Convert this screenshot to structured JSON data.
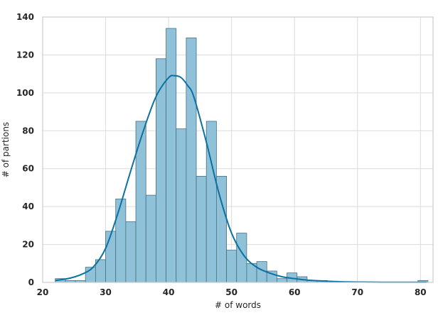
{
  "chart_data": {
    "type": "bar",
    "subtype": "histogram-with-kde",
    "xlabel": "# of words",
    "ylabel": "# of partions",
    "xlim": [
      20,
      82
    ],
    "ylim": [
      0,
      140
    ],
    "xticks": [
      20,
      30,
      40,
      50,
      60,
      70,
      80
    ],
    "yticks": [
      0,
      20,
      40,
      60,
      80,
      100,
      120,
      140
    ],
    "grid": true,
    "bin_width": 1.6,
    "bins": [
      {
        "x0": 22.0,
        "count": 2
      },
      {
        "x0": 23.6,
        "count": 1
      },
      {
        "x0": 25.2,
        "count": 1
      },
      {
        "x0": 26.8,
        "count": 8
      },
      {
        "x0": 28.4,
        "count": 12
      },
      {
        "x0": 30.0,
        "count": 27
      },
      {
        "x0": 31.6,
        "count": 44
      },
      {
        "x0": 33.2,
        "count": 32
      },
      {
        "x0": 34.8,
        "count": 85
      },
      {
        "x0": 36.4,
        "count": 46
      },
      {
        "x0": 38.0,
        "count": 118
      },
      {
        "x0": 39.6,
        "count": 134
      },
      {
        "x0": 41.2,
        "count": 81
      },
      {
        "x0": 42.8,
        "count": 129
      },
      {
        "x0": 44.4,
        "count": 56
      },
      {
        "x0": 46.0,
        "count": 85
      },
      {
        "x0": 47.6,
        "count": 56
      },
      {
        "x0": 49.2,
        "count": 17
      },
      {
        "x0": 50.8,
        "count": 26
      },
      {
        "x0": 52.4,
        "count": 10
      },
      {
        "x0": 54.0,
        "count": 11
      },
      {
        "x0": 55.6,
        "count": 6
      },
      {
        "x0": 57.2,
        "count": 2
      },
      {
        "x0": 58.8,
        "count": 5
      },
      {
        "x0": 60.4,
        "count": 3
      },
      {
        "x0": 62.0,
        "count": 1
      },
      {
        "x0": 63.6,
        "count": 1
      },
      {
        "x0": 65.2,
        "count": 0
      },
      {
        "x0": 66.8,
        "count": 0
      },
      {
        "x0": 68.4,
        "count": 0
      },
      {
        "x0": 70.0,
        "count": 0
      },
      {
        "x0": 71.6,
        "count": 0
      },
      {
        "x0": 73.2,
        "count": 0
      },
      {
        "x0": 74.8,
        "count": 0
      },
      {
        "x0": 76.4,
        "count": 0
      },
      {
        "x0": 78.0,
        "count": 0
      },
      {
        "x0": 79.6,
        "count": 1
      }
    ],
    "kde": {
      "x": [
        22,
        24,
        26,
        28,
        30,
        32,
        34,
        36,
        38,
        40,
        41,
        42,
        43,
        44,
        46,
        48,
        50,
        52,
        54,
        56,
        58,
        60,
        62,
        64,
        66,
        68,
        70,
        74,
        78,
        81
      ],
      "y": [
        1,
        2,
        4,
        8,
        18,
        37,
        59,
        80,
        98,
        108,
        109,
        108,
        104,
        98,
        74,
        47,
        26,
        14,
        8,
        5,
        3,
        2,
        1.2,
        0.8,
        0.5,
        0.3,
        0.2,
        0.1,
        0.1,
        0.1
      ]
    },
    "colors": {
      "bar_fill": "#8fc1d9",
      "bar_stroke": "#4a6f82",
      "kde_line": "#0b72a0",
      "grid": "#dcdcdc",
      "frame": "#cccccc"
    }
  }
}
